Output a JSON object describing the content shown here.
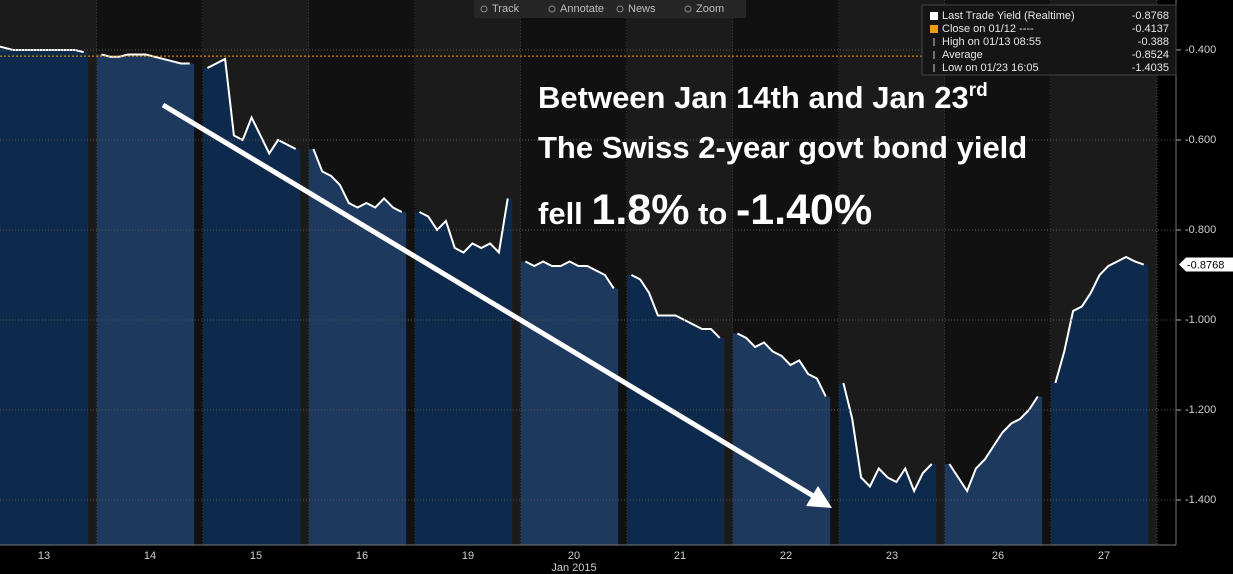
{
  "chart_data": {
    "type": "line",
    "categories": [
      null,
      null,
      null,
      null,
      null,
      "13",
      null,
      null,
      null,
      null,
      null,
      null,
      null,
      null,
      null,
      null,
      null,
      "14",
      null,
      null,
      null,
      null,
      null,
      null,
      null,
      null,
      null,
      null,
      null,
      "15",
      null,
      null,
      null,
      null,
      null,
      null,
      null,
      null,
      null,
      null,
      null,
      "16",
      null,
      null,
      null,
      null,
      null,
      null,
      null,
      null,
      null,
      null,
      null,
      "19",
      null,
      null,
      null,
      null,
      null,
      null,
      null,
      null,
      null,
      null,
      null,
      "20",
      null,
      null,
      null,
      null,
      null,
      null,
      null,
      null,
      null,
      null,
      null,
      "21",
      null,
      null,
      null,
      null,
      null,
      null,
      null,
      null,
      null,
      null,
      null,
      "22",
      null,
      null,
      null,
      null,
      null,
      null,
      null,
      null,
      null,
      null,
      null,
      "23",
      null,
      null,
      null,
      null,
      null,
      null,
      null,
      null,
      null,
      null,
      null,
      "26",
      null,
      null,
      null,
      null,
      null,
      null,
      null,
      null,
      null,
      null,
      null,
      "27",
      null,
      null,
      null,
      null,
      null,
      null
    ],
    "x_label": "Jan 2015",
    "series": [
      {
        "name": "Last Trade Yield (Realtime)",
        "color": "#ffffff",
        "values": [
          -0.39,
          -0.395,
          -0.4,
          -0.4,
          -0.4,
          -0.4,
          -0.4,
          -0.4,
          -0.4,
          -0.4,
          -0.405,
          null,
          -0.41,
          -0.415,
          -0.415,
          -0.41,
          -0.41,
          -0.41,
          -0.415,
          -0.42,
          -0.425,
          -0.43,
          -0.43,
          null,
          -0.44,
          -0.43,
          -0.42,
          -0.59,
          -0.6,
          -0.55,
          -0.59,
          -0.63,
          -0.6,
          -0.61,
          -0.62,
          null,
          -0.62,
          -0.67,
          -0.68,
          -0.7,
          -0.74,
          -0.75,
          -0.74,
          -0.75,
          -0.73,
          -0.75,
          -0.76,
          null,
          -0.76,
          -0.77,
          -0.8,
          -0.78,
          -0.84,
          -0.85,
          -0.83,
          -0.84,
          -0.83,
          -0.85,
          -0.73,
          null,
          -0.87,
          -0.88,
          -0.87,
          -0.88,
          -0.88,
          -0.87,
          -0.88,
          -0.88,
          -0.89,
          -0.9,
          -0.93,
          null,
          -0.9,
          -0.91,
          -0.94,
          -0.99,
          -0.99,
          -0.99,
          -1.0,
          -1.01,
          -1.02,
          -1.02,
          -1.04,
          null,
          -1.03,
          -1.04,
          -1.06,
          -1.05,
          -1.07,
          -1.08,
          -1.1,
          -1.09,
          -1.12,
          -1.13,
          -1.17,
          null,
          -1.14,
          -1.22,
          -1.35,
          -1.37,
          -1.33,
          -1.35,
          -1.36,
          -1.33,
          -1.38,
          -1.34,
          -1.32,
          null,
          -1.32,
          -1.35,
          -1.38,
          -1.33,
          -1.31,
          -1.28,
          -1.25,
          -1.23,
          -1.22,
          -1.2,
          -1.17,
          null,
          -1.14,
          -1.07,
          -0.98,
          -0.97,
          -0.94,
          -0.9,
          -0.88,
          -0.87,
          -0.86,
          -0.87,
          -0.8768,
          null
        ]
      }
    ],
    "area_colors": [
      "#0d2a4d",
      "#1d3a5e"
    ],
    "last_value": -0.8768,
    "stats": [
      {
        "label": "Close on 01/12 ----",
        "value": -0.4137,
        "color": "#f39c12"
      },
      {
        "label": "High on 01/13 08:55",
        "value": -0.388
      },
      {
        "label": "Average",
        "value": -0.8524
      },
      {
        "label": "Low on 01/23 16:05",
        "value": -1.4035
      }
    ],
    "ylim": [
      -1.5,
      -0.289
    ],
    "yticks": [
      {
        "value": -0.4,
        "label": "-0.400"
      },
      {
        "value": -0.6,
        "label": "-0.600"
      },
      {
        "value": -0.8,
        "label": "-0.800"
      },
      {
        "value": -1.0,
        "label": "-1.000"
      },
      {
        "value": -1.2,
        "label": "-1.200"
      },
      {
        "value": -1.4,
        "label": "-1.400"
      }
    ],
    "grid": true,
    "toolbar": [
      "Track",
      "Annotate",
      "News",
      "Zoom"
    ],
    "annotation": {
      "line1": "Between Jan 14th  and Jan 23",
      "line1_sup": "rd",
      "line2": "The Swiss 2-year govt bond yield",
      "line3_a": "fell",
      "line3_b": "1.8%",
      "line3_c": "to",
      "line3_d": "-1.40%"
    }
  }
}
